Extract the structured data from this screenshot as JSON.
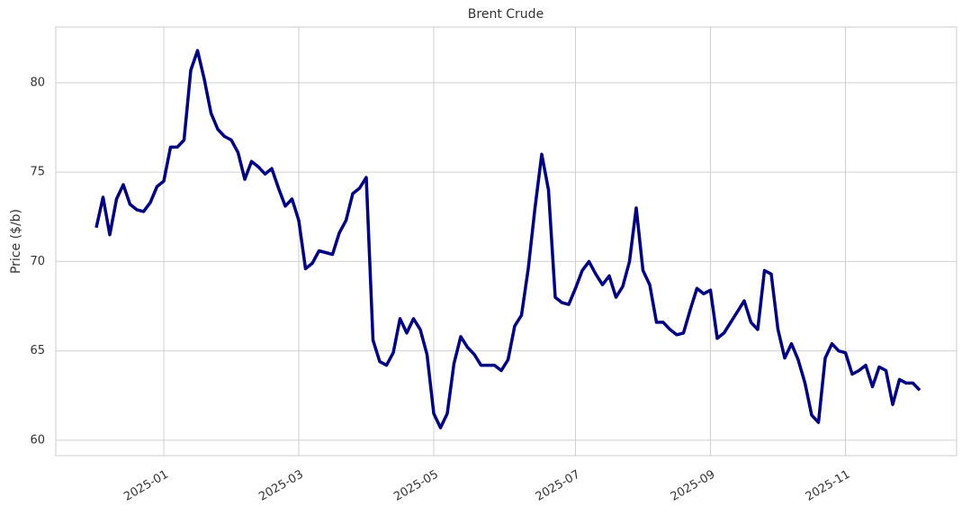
{
  "chart_data": {
    "type": "line",
    "title": "Brent Crude",
    "y_label": "Price ($/b)",
    "categories": [
      null,
      null,
      null,
      null,
      null,
      null,
      null,
      null,
      null,
      null,
      "2025-01",
      null,
      null,
      null,
      null,
      null,
      null,
      null,
      null,
      null,
      null,
      null,
      null,
      null,
      null,
      null,
      null,
      null,
      null,
      null,
      "2025-03",
      null,
      null,
      null,
      null,
      null,
      null,
      null,
      null,
      null,
      null,
      null,
      null,
      null,
      null,
      null,
      null,
      null,
      null,
      null,
      "2025-05",
      null,
      null,
      null,
      null,
      null,
      null,
      null,
      null,
      null,
      null,
      null,
      null,
      null,
      null,
      null,
      null,
      null,
      null,
      null,
      null,
      "2025-07",
      null,
      null,
      null,
      null,
      null,
      null,
      null,
      null,
      null,
      null,
      null,
      null,
      null,
      null,
      null,
      null,
      null,
      null,
      null,
      "2025-09",
      null,
      null,
      null,
      null,
      null,
      null,
      null,
      null,
      null,
      null,
      null,
      null,
      null,
      null,
      null,
      null,
      null,
      null,
      null,
      "2025-11",
      null,
      null,
      null,
      null,
      null,
      null,
      null,
      null,
      null,
      null,
      null
    ],
    "values": [
      71.9,
      73.6,
      71.5,
      73.5,
      74.3,
      73.2,
      72.9,
      72.8,
      73.3,
      74.2,
      74.5,
      76.4,
      76.4,
      76.8,
      80.7,
      81.8,
      80.2,
      78.3,
      77.4,
      77.0,
      76.8,
      76.1,
      74.6,
      75.6,
      75.3,
      74.9,
      75.2,
      74.1,
      73.1,
      73.5,
      72.3,
      69.6,
      69.9,
      70.6,
      70.5,
      70.4,
      71.6,
      72.3,
      73.8,
      74.1,
      74.7,
      65.6,
      64.4,
      64.2,
      64.9,
      66.8,
      66.0,
      66.8,
      66.2,
      64.8,
      61.5,
      60.7,
      61.5,
      64.3,
      65.8,
      65.2,
      64.8,
      64.2,
      64.2,
      64.2,
      63.9,
      64.5,
      66.4,
      67.0,
      69.6,
      73.0,
      76.0,
      74.0,
      68.0,
      67.7,
      67.6,
      68.5,
      69.5,
      70.0,
      69.3,
      68.7,
      69.2,
      68.0,
      68.6,
      70.0,
      73.0,
      69.5,
      68.7,
      66.6,
      66.6,
      66.2,
      65.9,
      66.0,
      67.3,
      68.5,
      68.2,
      68.4,
      65.7,
      66.0,
      66.6,
      67.2,
      67.8,
      66.6,
      66.2,
      69.5,
      69.3,
      66.2,
      64.6,
      65.4,
      64.5,
      63.2,
      61.4,
      61.0,
      64.6,
      65.4,
      65.0,
      64.9,
      63.7,
      63.9,
      64.2,
      63.0,
      64.1,
      63.9,
      62.0,
      63.4,
      63.2,
      63.2,
      62.8
    ],
    "color": "#000080",
    "ylim": [
      59.14,
      83.12
    ],
    "yticks": [
      60,
      65,
      70,
      75,
      80
    ],
    "grid": true
  }
}
